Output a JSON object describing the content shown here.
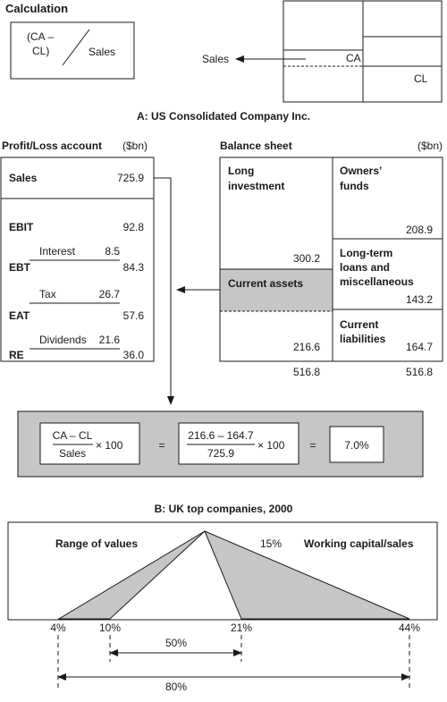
{
  "calculation": {
    "title": "Calculation",
    "ratio_numer_a": "(CA –",
    "ratio_numer_b": "CL)",
    "ratio_denom": "Sales",
    "arrow_label": "Sales",
    "ca_label": "CA",
    "cl_label": "CL"
  },
  "section_a": {
    "title": "A: US Consolidated Company Inc.",
    "pl": {
      "title": "Profit/Loss account",
      "unit": "($bn)",
      "sales_label": "Sales",
      "sales_value": "725.9",
      "ebit_label": "EBIT",
      "ebit_value": "92.8",
      "interest_label": "Interest",
      "interest_value": "8.5",
      "ebt_label": "EBT",
      "ebt_value": "84.3",
      "tax_label": "Tax",
      "tax_value": "26.7",
      "eat_label": "EAT",
      "eat_value": "57.6",
      "dividends_label": "Dividends",
      "dividends_value": "21.6",
      "re_label": "RE",
      "re_value": "36.0"
    },
    "bs": {
      "title": "Balance sheet",
      "unit": "($bn)",
      "long_inv_a": "Long",
      "long_inv_b": "investment",
      "long_inv_value": "300.2",
      "current_assets": "Current assets",
      "current_assets_value": "216.6",
      "owners_a": "Owners’",
      "owners_b": "funds",
      "owners_value": "208.9",
      "ltl_a": "Long-term",
      "ltl_b": "loans and",
      "ltl_c": "miscellaneous",
      "ltl_value": "143.2",
      "cl_a": "Current",
      "cl_b": "liabilities",
      "cl_value": "164.7",
      "total_left": "516.8",
      "total_right": "516.8"
    },
    "formula": {
      "f1_numer": "CA – CL",
      "f1_denom": "Sales",
      "times": "× 100",
      "eq": "=",
      "f2_numer": "216.6 – 164.7",
      "f2_denom": "725.9",
      "result": "7.0%"
    }
  },
  "section_b": {
    "title": "B: UK top companies, 2000",
    "range_label": "Range of values",
    "wc_label": "Working capital/sales",
    "peak_label": "15%",
    "ticks": [
      "4%",
      "10%",
      "21%",
      "44%"
    ],
    "inner_span": "50%",
    "outer_span": "80%"
  }
}
